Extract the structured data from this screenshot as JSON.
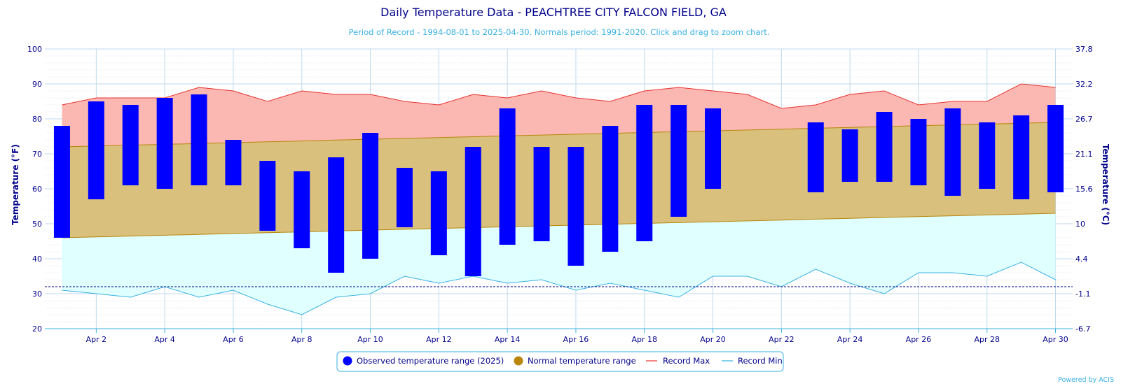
{
  "chart_data": {
    "type": "bar",
    "title": "Daily Temperature Data - PEACHTREE CITY FALCON FIELD, GA",
    "subtitle": "Period of Record - 1994-08-01 to 2025-04-30. Normals period: 1991-2020. Click and drag to zoom chart.",
    "ylabel": "Temperature (°F)",
    "ylabel_right": "Temperature (°C)",
    "ylim": [
      20,
      100
    ],
    "yticks": [
      20,
      30,
      40,
      50,
      60,
      70,
      80,
      90,
      100
    ],
    "yticks_right": [
      "-6.7",
      "-1.1",
      "4.4",
      "10",
      "15.6",
      "21.1",
      "26.7",
      "32.2",
      "37.8"
    ],
    "x": [
      1,
      2,
      3,
      4,
      5,
      6,
      7,
      8,
      9,
      10,
      11,
      12,
      13,
      14,
      15,
      16,
      17,
      18,
      19,
      20,
      21,
      22,
      23,
      24,
      25,
      26,
      27,
      28,
      29,
      30
    ],
    "xlim": [
      0.5,
      30.5
    ],
    "xtick_labels": [
      {
        "x": 2,
        "label": "Apr 2"
      },
      {
        "x": 4,
        "label": "Apr 4"
      },
      {
        "x": 6,
        "label": "Apr 6"
      },
      {
        "x": 8,
        "label": "Apr 8"
      },
      {
        "x": 10,
        "label": "Apr 10"
      },
      {
        "x": 12,
        "label": "Apr 12"
      },
      {
        "x": 14,
        "label": "Apr 14"
      },
      {
        "x": 16,
        "label": "Apr 16"
      },
      {
        "x": 18,
        "label": "Apr 18"
      },
      {
        "x": 20,
        "label": "Apr 20"
      },
      {
        "x": 22,
        "label": "Apr 22"
      },
      {
        "x": 24,
        "label": "Apr 24"
      },
      {
        "x": 26,
        "label": "Apr 26"
      },
      {
        "x": 28,
        "label": "Apr 28"
      },
      {
        "x": 30,
        "label": "Apr 30"
      }
    ],
    "freezing_line": 32,
    "grid": true,
    "legend_position": "bottom-center",
    "series": [
      {
        "name": "Observed temperature range (2025)",
        "kind": "range-bar",
        "color": "#0000ff",
        "high": [
          78,
          85,
          84,
          86,
          87,
          74,
          68,
          65,
          69,
          76,
          66,
          65,
          72,
          83,
          72,
          72,
          78,
          84,
          84,
          83,
          null,
          null,
          79,
          77,
          82,
          80,
          83,
          79,
          81,
          84
        ],
        "low": [
          46,
          57,
          61,
          60,
          61,
          61,
          48,
          43,
          36,
          40,
          49,
          41,
          35,
          44,
          45,
          38,
          42,
          45,
          52,
          60,
          null,
          null,
          59,
          62,
          62,
          61,
          58,
          60,
          57,
          59
        ]
      },
      {
        "name": "Normal temperature range",
        "kind": "area-range",
        "color": "#b8860b",
        "fill": "#d9c07d",
        "high_start": 72,
        "high_end": 79,
        "low_start": 46,
        "low_end": 53
      },
      {
        "name": "Record Max",
        "kind": "line",
        "color": "#e8312f",
        "fill": "#fbb8b2",
        "values": [
          84,
          86,
          86,
          86,
          89,
          88,
          85,
          88,
          87,
          87,
          85,
          84,
          87,
          86,
          88,
          86,
          85,
          88,
          89,
          88,
          87,
          83,
          84,
          87,
          88,
          84,
          85,
          85,
          90,
          89
        ]
      },
      {
        "name": "Record Min",
        "kind": "line",
        "color": "#3ab0e2",
        "fill": "#e0ffff",
        "values": [
          31,
          30,
          29,
          32,
          29,
          31,
          27,
          24,
          29,
          30,
          35,
          33,
          35,
          33,
          34,
          31,
          33,
          31,
          29,
          35,
          35,
          32,
          37,
          33,
          30,
          36,
          36,
          35,
          39,
          34
        ]
      }
    ]
  },
  "credit": "Powered by ACIS"
}
